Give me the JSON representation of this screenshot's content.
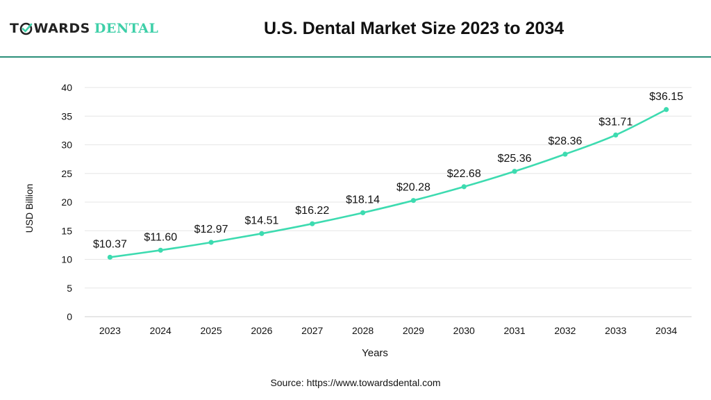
{
  "logo": {
    "part1": "T",
    "part2": "WARDS",
    "part3": "DENTAL"
  },
  "source": "Source: https://www.towardsdental.com",
  "chart_data": {
    "type": "line",
    "title": "U.S. Dental Market Size 2023 to 2034",
    "xlabel": "Years",
    "ylabel": "USD Billion",
    "categories": [
      "2023",
      "2024",
      "2025",
      "2026",
      "2027",
      "2028",
      "2029",
      "2030",
      "2031",
      "2032",
      "2033",
      "2034"
    ],
    "series": [
      {
        "values": [
          10.37,
          11.6,
          12.97,
          14.51,
          16.22,
          18.14,
          20.28,
          22.68,
          25.36,
          28.36,
          31.71,
          36.15
        ],
        "labels": [
          "$10.37",
          "$11.60",
          "$12.97",
          "$14.51",
          "$16.22",
          "$18.14",
          "$20.28",
          "$22.68",
          "$25.36",
          "$28.36",
          "$31.71",
          "$36.15"
        ]
      }
    ],
    "ylim": [
      0,
      40
    ],
    "yticks": [
      0,
      5,
      10,
      15,
      20,
      25,
      30,
      35,
      40
    ],
    "grid": true,
    "line_color": "#3ddbb0",
    "grid_color": "#e6e6e6"
  }
}
